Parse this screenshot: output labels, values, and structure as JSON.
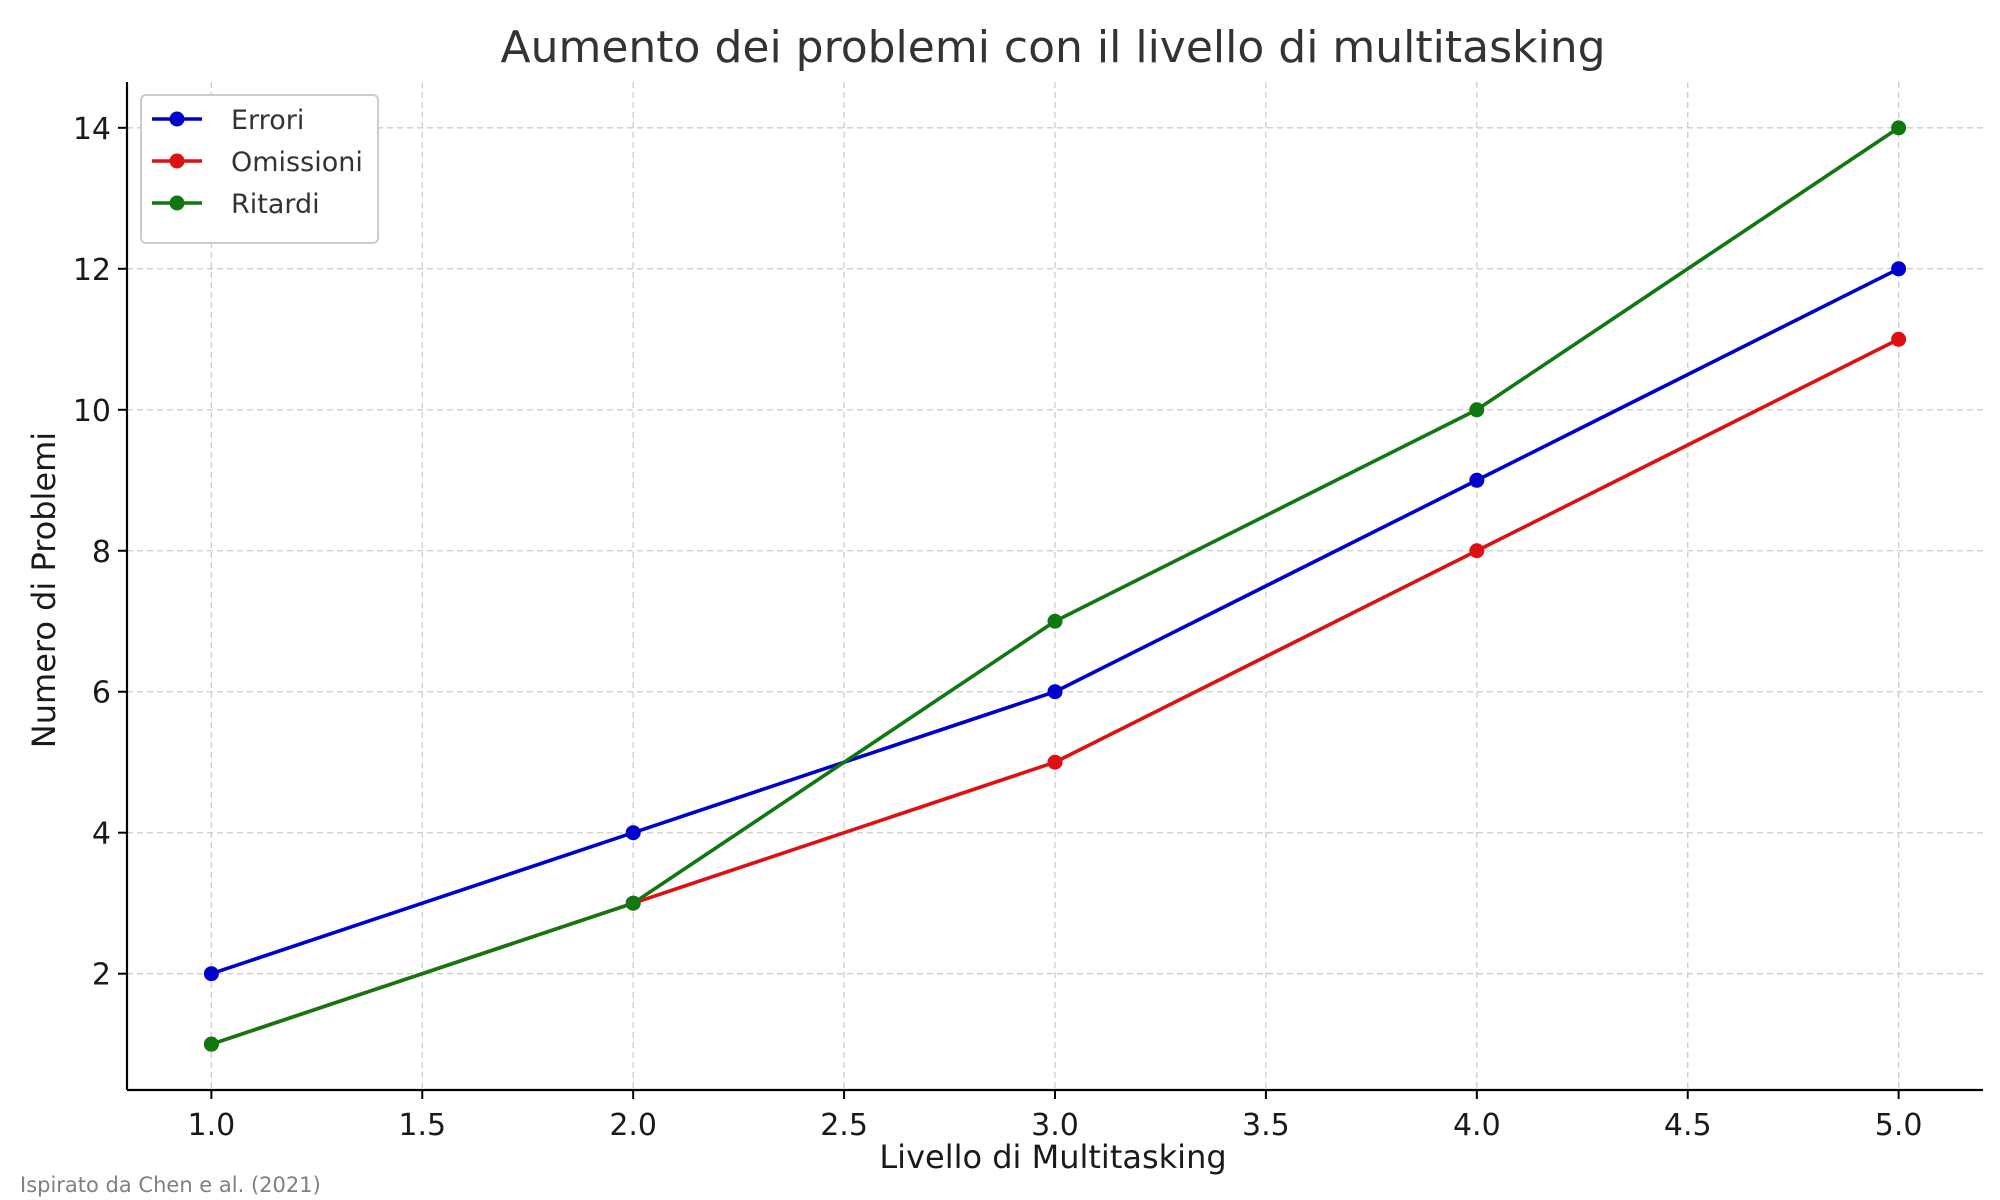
{
  "chart_data": {
    "type": "line",
    "title": "Aumento dei problemi con il livello di multitasking",
    "xlabel": "Livello di Multitasking",
    "ylabel": "Numero di Problemi",
    "x": [
      1,
      2,
      3,
      4,
      5
    ],
    "xlim": [
      0.8,
      5.2
    ],
    "ylim": [
      0.35,
      14.65
    ],
    "xticks": [
      1.0,
      1.5,
      2.0,
      2.5,
      3.0,
      3.5,
      4.0,
      4.5,
      5.0
    ],
    "xtick_labels": [
      "1.0",
      "1.5",
      "2.0",
      "2.5",
      "3.0",
      "3.5",
      "4.0",
      "4.5",
      "5.0"
    ],
    "yticks": [
      2,
      4,
      6,
      8,
      10,
      12,
      14
    ],
    "ytick_labels": [
      "2",
      "4",
      "6",
      "8",
      "10",
      "12",
      "14"
    ],
    "grid": true,
    "legend_position": "top-left",
    "series": [
      {
        "name": "Errori",
        "values": [
          2,
          4,
          6,
          9,
          12
        ],
        "color": "#0000cc",
        "marker": "circle"
      },
      {
        "name": "Omissioni",
        "values": [
          1,
          3,
          5,
          8,
          11
        ],
        "color": "#dd1111",
        "marker": "circle"
      },
      {
        "name": "Ritardi",
        "values": [
          1,
          3,
          7,
          10,
          14
        ],
        "color": "#117711",
        "marker": "circle"
      }
    ]
  },
  "source_note": "Ispirato da Chen e al. (2021)"
}
